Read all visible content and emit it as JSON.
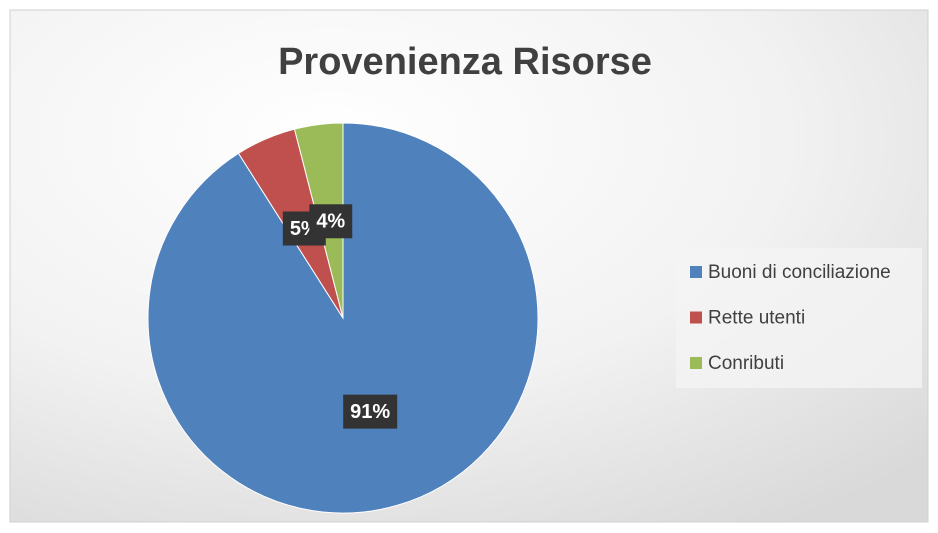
{
  "chart_data": {
    "type": "pie",
    "title": "Provenienza Risorse",
    "categories": [
      "Buoni di conciliazione",
      "Rette utenti",
      "Conributi"
    ],
    "values": [
      91,
      5,
      4
    ],
    "value_labels": [
      "91%",
      "5%",
      "4%"
    ],
    "colors": [
      "#4f81bd",
      "#c0504d",
      "#9bbb59"
    ],
    "legend": "right"
  }
}
